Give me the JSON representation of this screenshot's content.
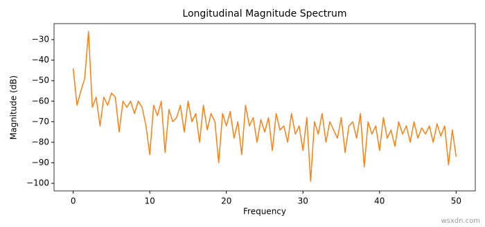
{
  "chart_data": {
    "type": "line",
    "title": "Longitudinal Magnitude Spectrum",
    "xlabel": "Frequency",
    "ylabel": "Magnitude (dB)",
    "x": [
      0,
      0.5,
      1,
      1.5,
      2,
      2.5,
      3,
      3.5,
      4,
      4.5,
      5,
      5.5,
      6,
      6.5,
      7,
      7.5,
      8,
      8.5,
      9,
      9.5,
      10,
      10.5,
      11,
      11.5,
      12,
      12.5,
      13,
      13.5,
      14,
      14.5,
      15,
      15.5,
      16,
      16.5,
      17,
      17.5,
      18,
      18.5,
      19,
      19.5,
      20,
      20.5,
      21,
      21.5,
      22,
      22.5,
      23,
      23.5,
      24,
      24.5,
      25,
      25.5,
      26,
      26.5,
      27,
      27.5,
      28,
      28.5,
      29,
      29.5,
      30,
      30.5,
      31,
      31.5,
      32,
      32.5,
      33,
      33.5,
      34,
      34.5,
      35,
      35.5,
      36,
      36.5,
      37,
      37.5,
      38,
      38.5,
      39,
      39.5,
      40,
      40.5,
      41,
      41.5,
      42,
      42.5,
      43,
      43.5,
      44,
      44.5,
      45,
      45.5,
      46,
      46.5,
      47,
      47.5,
      48,
      48.5,
      49,
      49.5,
      50
    ],
    "series": [
      {
        "name": "Longitudinal",
        "color": "#ff7f0e",
        "values": [
          -44,
          -62,
          -55,
          -49,
          -26,
          -63,
          -58,
          -72,
          -58,
          -62,
          -56,
          -58,
          -75,
          -60,
          -63,
          -60,
          -66,
          -60,
          -63,
          -72,
          -86,
          -62,
          -67,
          -60,
          -85,
          -64,
          -70,
          -68,
          -62,
          -75,
          -60,
          -70,
          -66,
          -80,
          -62,
          -74,
          -66,
          -70,
          -90,
          -66,
          -72,
          -65,
          -78,
          -70,
          -86,
          -62,
          -72,
          -68,
          -80,
          -69,
          -75,
          -68,
          -84,
          -66,
          -74,
          -72,
          -80,
          -66,
          -76,
          -72,
          -84,
          -68,
          -99,
          -70,
          -76,
          -66,
          -80,
          -70,
          -74,
          -78,
          -68,
          -85,
          -72,
          -70,
          -78,
          -66,
          -92,
          -70,
          -76,
          -72,
          -84,
          -68,
          -78,
          -74,
          -82,
          -70,
          -76,
          -72,
          -80,
          -70,
          -78,
          -73,
          -76,
          -72,
          -80,
          -71,
          -77,
          -72,
          -91,
          -74,
          -87
        ]
      }
    ],
    "xlim": [
      -2.5,
      52.5
    ],
    "ylim": [
      -103.7,
      -22.2
    ],
    "xticks": [
      0,
      10,
      20,
      30,
      40,
      50
    ],
    "yticks": [
      {
        "value": -30,
        "label": "−30"
      },
      {
        "value": -40,
        "label": "−40"
      },
      {
        "value": -50,
        "label": "−50"
      },
      {
        "value": -60,
        "label": "−60"
      },
      {
        "value": -70,
        "label": "−70"
      },
      {
        "value": -80,
        "label": "−80"
      },
      {
        "value": -90,
        "label": "−90"
      },
      {
        "value": -100,
        "label": "−100"
      }
    ],
    "grid": false
  },
  "watermark": "wsxdn.com"
}
